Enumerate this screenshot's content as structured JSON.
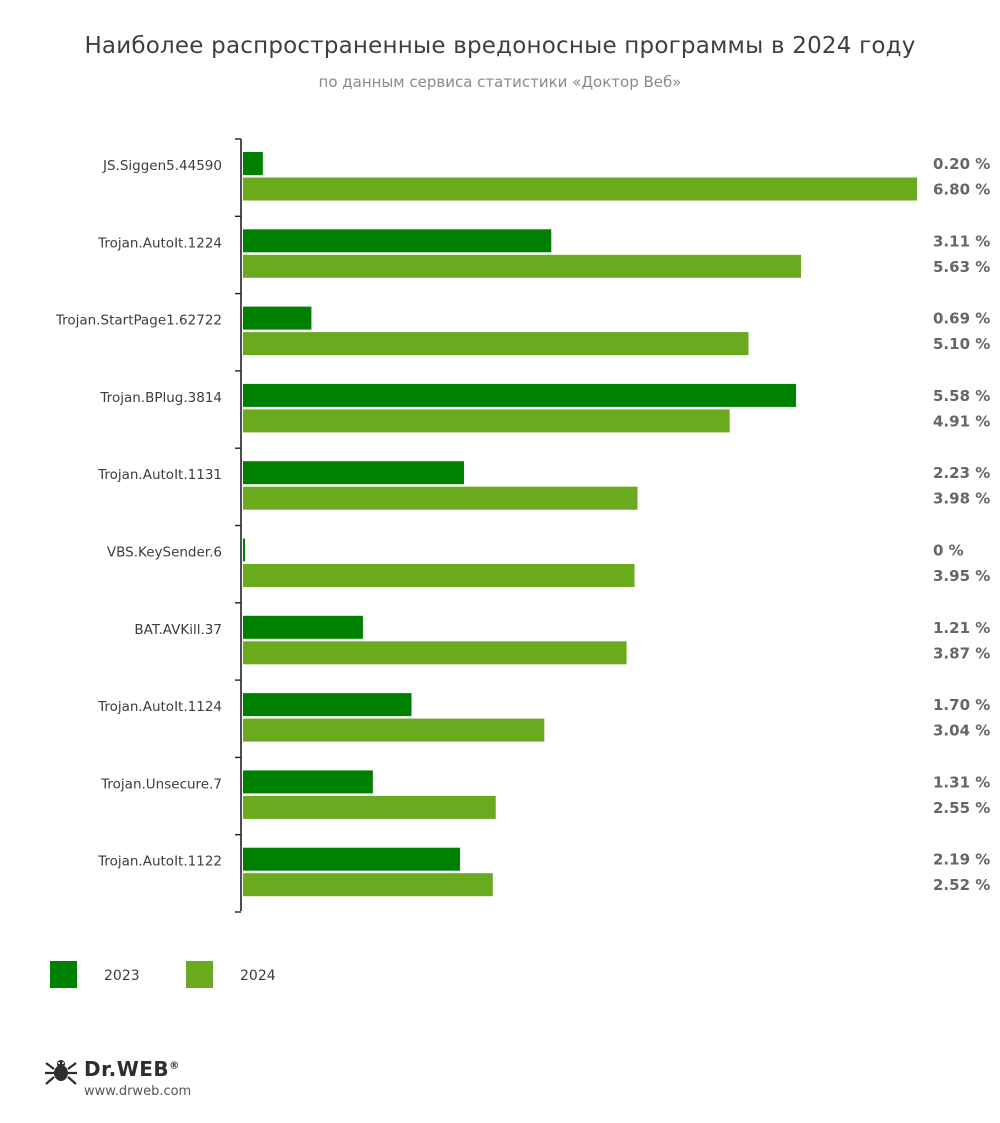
{
  "chart_data": {
    "type": "bar",
    "orientation": "horizontal",
    "title": "Наиболее распространенные вредоносные программы в 2024 году",
    "subtitle": "по данным сервиса статистики «Доктор Веб»",
    "xlabel": "",
    "ylabel": "",
    "xlim": [
      0,
      6.8
    ],
    "grid": false,
    "legend_position": "bottom-left",
    "categories": [
      "JS.Siggen5.44590",
      "Trojan.AutoIt.1224",
      "Trojan.StartPage1.62722",
      "Trojan.BPlug.3814",
      "Trojan.AutoIt.1131",
      "VBS.KeySender.6",
      "BAT.AVKill.37",
      "Trojan.AutoIt.1124",
      "Trojan.Unsecure.7",
      "Trojan.AutoIt.1122"
    ],
    "series": [
      {
        "name": "2023",
        "color": "#008000",
        "values": [
          0.2,
          3.11,
          0.69,
          5.58,
          2.23,
          0,
          1.21,
          1.7,
          1.31,
          2.19
        ],
        "labels": [
          "0.20 %",
          "3.11 %",
          "0.69 %",
          "5.58 %",
          "2.23 %",
          "0 %",
          "1.21 %",
          "1.70 %",
          "1.31 %",
          "2.19 %"
        ]
      },
      {
        "name": "2024",
        "color": "#6aaa1e",
        "values": [
          6.8,
          5.63,
          5.1,
          4.91,
          3.98,
          3.95,
          3.87,
          3.04,
          2.55,
          2.52
        ],
        "labels": [
          "6.80 %",
          "5.63 %",
          "5.10 %",
          "4.91 %",
          "3.98 %",
          "3.95 %",
          "3.87 %",
          "3.04 %",
          "2.55 %",
          "2.52 %"
        ]
      }
    ]
  },
  "logo": {
    "brand": "Dr.WEB",
    "registered": "®",
    "url": "www.drweb.com",
    "icon": "spider-icon"
  }
}
